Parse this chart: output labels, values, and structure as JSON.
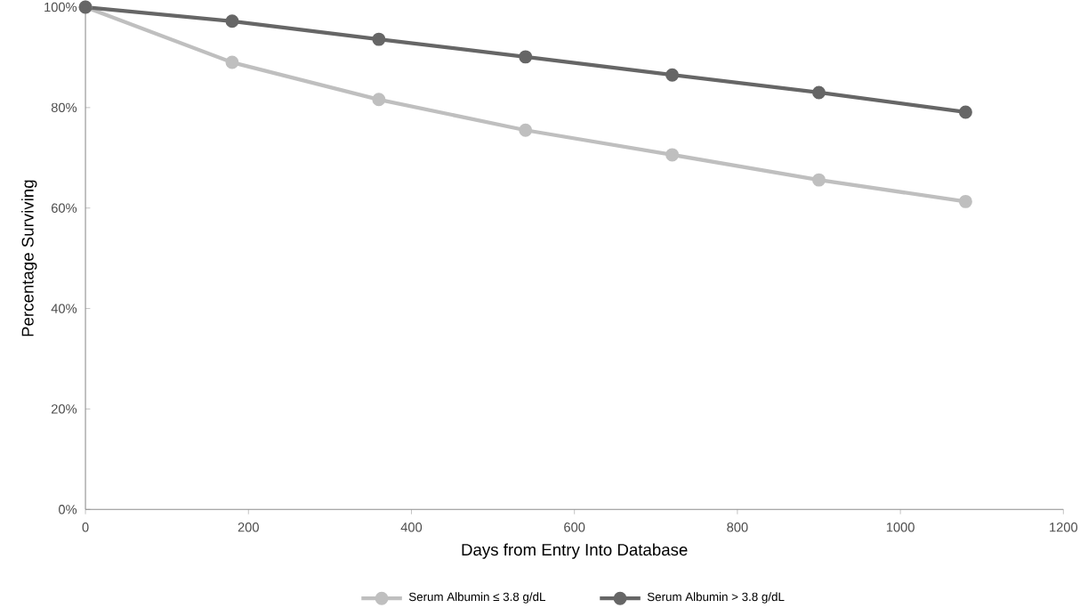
{
  "chart_data": {
    "type": "line",
    "xlabel": "Days from Entry Into Database",
    "ylabel": "Percentage Surviving",
    "x": [
      0,
      180,
      360,
      540,
      720,
      900,
      1080
    ],
    "series": [
      {
        "name": "Serum Albumin ≤ 3.8 g/dL",
        "color": "#bfbfbf",
        "values": [
          100,
          89.0,
          81.6,
          75.5,
          70.6,
          65.6,
          61.3
        ]
      },
      {
        "name": "Serum Albumin > 3.8 g/dL",
        "color": "#666666",
        "values": [
          100,
          97.2,
          93.6,
          90.1,
          86.5,
          83.0,
          79.1
        ]
      }
    ],
    "xlim": [
      0,
      1200
    ],
    "xticks": [
      0,
      200,
      400,
      600,
      800,
      1000,
      1200
    ],
    "ylim": [
      0,
      100
    ],
    "yticks": [
      {
        "value": 0,
        "label": "0%"
      },
      {
        "value": 20,
        "label": "20%"
      },
      {
        "value": 40,
        "label": "40%"
      },
      {
        "value": 60,
        "label": "60%"
      },
      {
        "value": 80,
        "label": "80%"
      },
      {
        "value": 100,
        "label": "100%"
      }
    ],
    "grid": false,
    "legend": "bottom",
    "marker": "circle",
    "line_style": "solid"
  }
}
